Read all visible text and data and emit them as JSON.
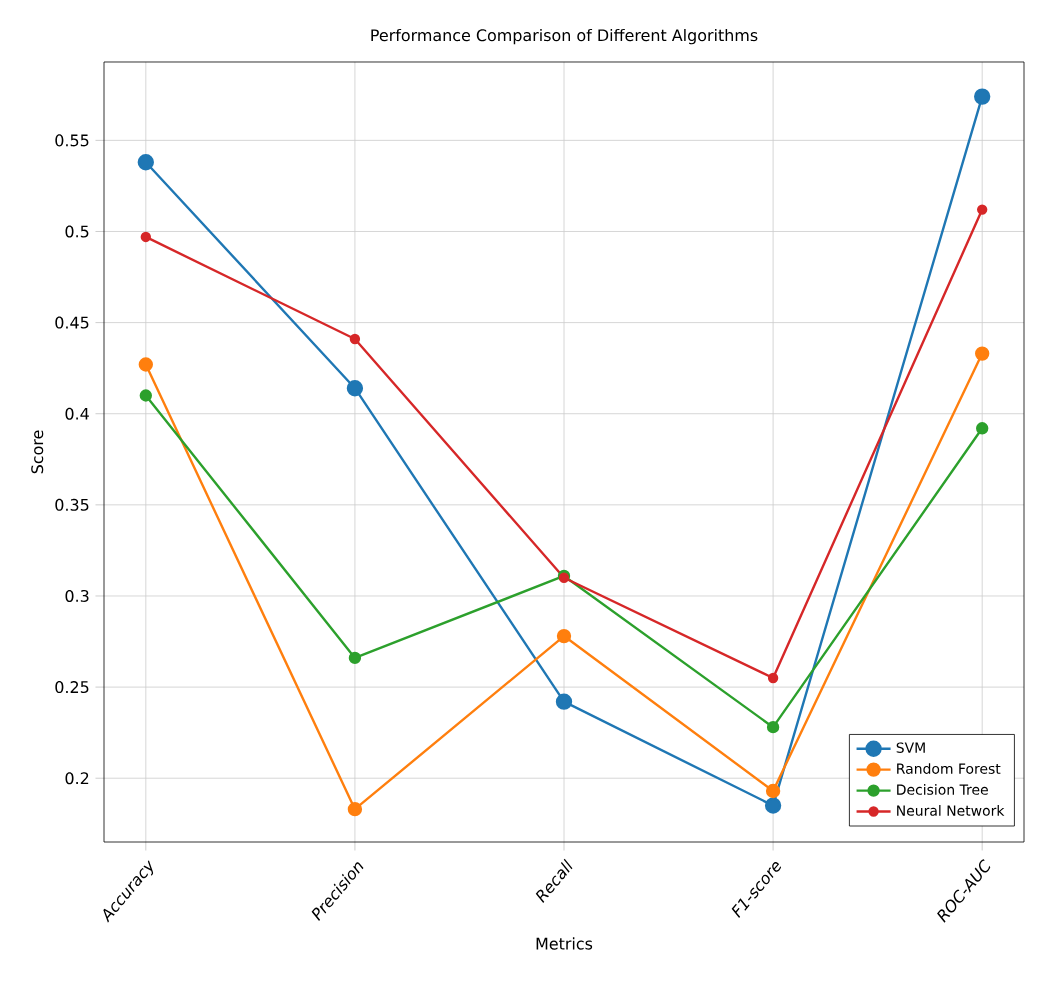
{
  "chart_data": {
    "type": "line",
    "title": "Performance Comparison of Different Algorithms",
    "xlabel": "Metrics",
    "ylabel": "Score",
    "categories": [
      "Accuracy",
      "Precision",
      "Recall",
      "F1-score",
      "ROC-AUC"
    ],
    "series": [
      {
        "name": "SVM",
        "color": "#1f77b4",
        "values": [
          0.538,
          0.414,
          0.242,
          0.185,
          0.574
        ]
      },
      {
        "name": "Random Forest",
        "color": "#ff7f0e",
        "values": [
          0.427,
          0.183,
          0.278,
          0.193,
          0.433
        ]
      },
      {
        "name": "Decision Tree",
        "color": "#2ca02c",
        "values": [
          0.41,
          0.266,
          0.311,
          0.228,
          0.392
        ]
      },
      {
        "name": "Neural Network",
        "color": "#d62728",
        "values": [
          0.497,
          0.441,
          0.31,
          0.255,
          0.512
        ]
      }
    ],
    "ylim": [
      0.165,
      0.593
    ],
    "yticks": [
      0.2,
      0.25,
      0.3,
      0.35,
      0.4,
      0.45,
      0.5,
      0.55
    ],
    "grid": true,
    "legend": "bottom right",
    "marker": "circle",
    "line_style": "solid"
  }
}
